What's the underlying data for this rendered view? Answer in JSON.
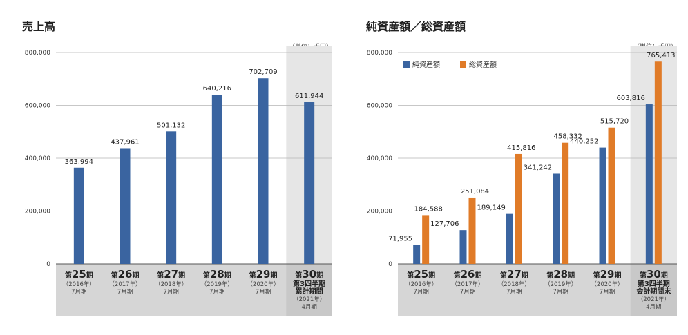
{
  "chart_data": [
    {
      "id": "sales",
      "type": "bar",
      "title": "売上高",
      "unit": "（単位：千円）",
      "ylim": [
        0,
        800000
      ],
      "yticks": [
        "0",
        "200,000",
        "400,000",
        "600,000",
        "800,000"
      ],
      "ytick_values": [
        0,
        200000,
        400000,
        600000,
        800000
      ],
      "grid": true,
      "highlight_last": true,
      "categories": [
        {
          "pre": "第",
          "num": "25",
          "post": "期",
          "lines": [
            "（2016年）",
            "7月期"
          ]
        },
        {
          "pre": "第",
          "num": "26",
          "post": "期",
          "lines": [
            "（2017年）",
            "7月期"
          ]
        },
        {
          "pre": "第",
          "num": "27",
          "post": "期",
          "lines": [
            "（2018年）",
            "7月期"
          ]
        },
        {
          "pre": "第",
          "num": "28",
          "post": "期",
          "lines": [
            "（2019年）",
            "7月期"
          ]
        },
        {
          "pre": "第",
          "num": "29",
          "post": "期",
          "lines": [
            "（2020年）",
            "7月期"
          ]
        },
        {
          "pre": "第",
          "num": "30",
          "post": "期",
          "lines": [
            "第3四半期",
            "累計期間",
            "（2021年）",
            "4月期"
          ]
        }
      ],
      "series": [
        {
          "color": "#3a64a0",
          "values": [
            363994,
            437961,
            501132,
            640216,
            702709,
            611944
          ],
          "labels": [
            "363,994",
            "437,961",
            "501,132",
            "640,216",
            "702,709",
            "611,944"
          ]
        }
      ]
    },
    {
      "id": "assets",
      "type": "bar",
      "title": "純資産額／総資産額",
      "unit": "（単位：千円）",
      "ylim": [
        0,
        800000
      ],
      "yticks": [
        "0",
        "200,000",
        "400,000",
        "600,000",
        "800,000"
      ],
      "ytick_values": [
        0,
        200000,
        400000,
        600000,
        800000
      ],
      "grid": true,
      "highlight_last": true,
      "legend_position": "top-left",
      "categories": [
        {
          "pre": "第",
          "num": "25",
          "post": "期",
          "lines": [
            "（2016年）",
            "7月期"
          ]
        },
        {
          "pre": "第",
          "num": "26",
          "post": "期",
          "lines": [
            "（2017年）",
            "7月期"
          ]
        },
        {
          "pre": "第",
          "num": "27",
          "post": "期",
          "lines": [
            "（2018年）",
            "7月期"
          ]
        },
        {
          "pre": "第",
          "num": "28",
          "post": "期",
          "lines": [
            "（2019年）",
            "7月期"
          ]
        },
        {
          "pre": "第",
          "num": "29",
          "post": "期",
          "lines": [
            "（2020年）",
            "7月期"
          ]
        },
        {
          "pre": "第",
          "num": "30",
          "post": "期",
          "lines": [
            "第3四半期",
            "会計期間末",
            "（2021年）",
            "4月期"
          ]
        }
      ],
      "series": [
        {
          "name": "純資産額",
          "color": "#3a64a0",
          "values": [
            71955,
            127706,
            189149,
            341242,
            440252,
            603816
          ],
          "labels": [
            "71,955",
            "127,706",
            "189,149",
            "341,242",
            "440,252",
            "603,816"
          ]
        },
        {
          "name": "総資産額",
          "color": "#e07b28",
          "values": [
            184588,
            251084,
            415816,
            458332,
            515720,
            765413
          ],
          "labels": [
            "184,588",
            "251,084",
            "415,816",
            "458,332",
            "515,720",
            "765,413"
          ]
        }
      ]
    }
  ]
}
